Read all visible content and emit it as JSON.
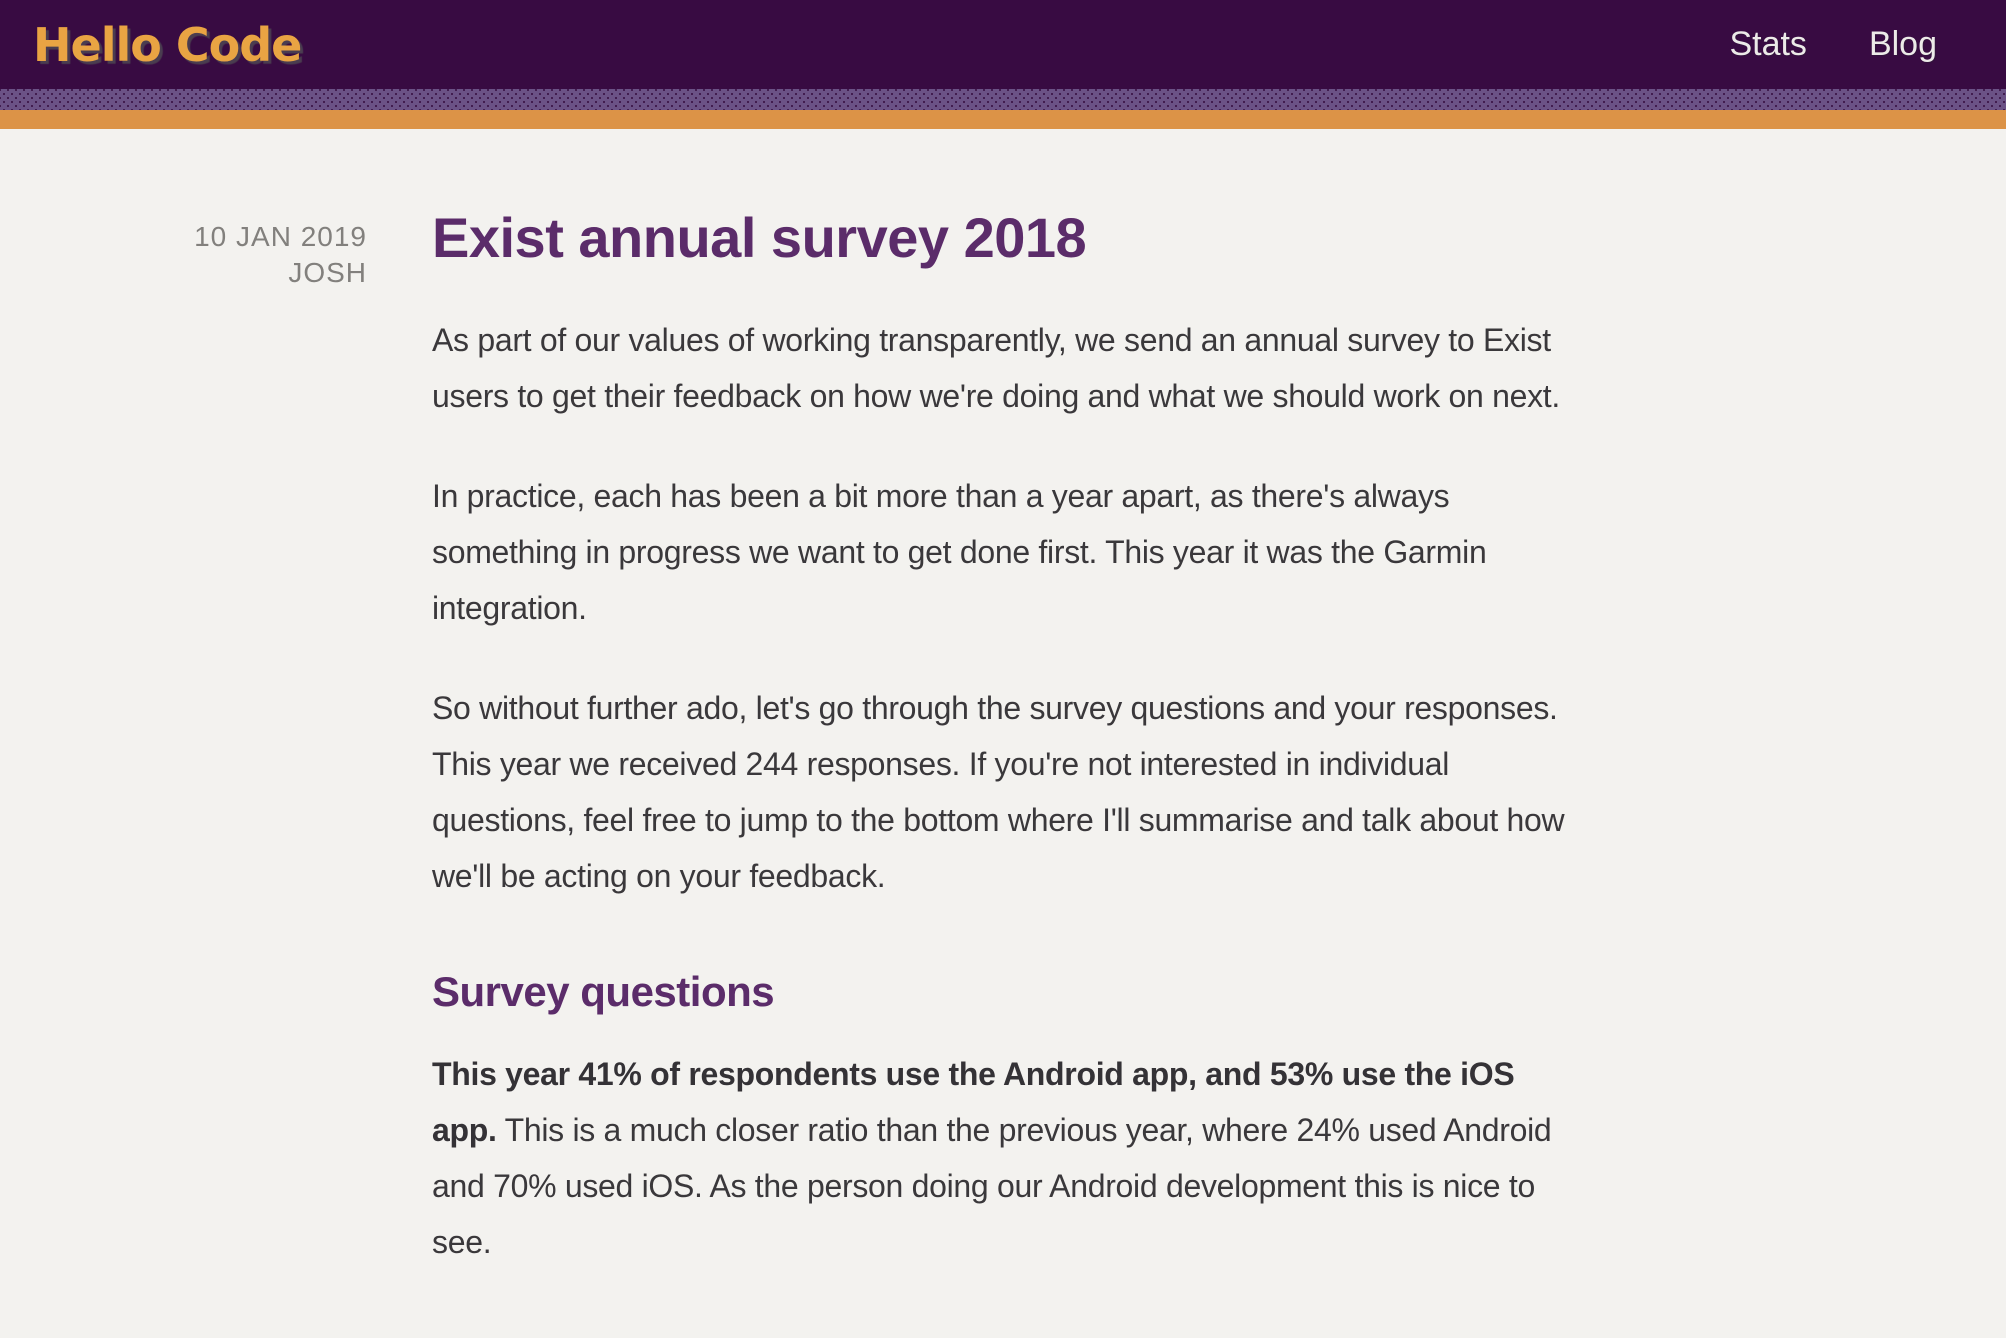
{
  "header": {
    "logo": "Hello Code",
    "nav": [
      {
        "label": "Stats"
      },
      {
        "label": "Blog"
      }
    ]
  },
  "post": {
    "meta": {
      "date": "10 JAN 2019",
      "author": "JOSH"
    },
    "title": "Exist annual survey 2018",
    "paragraphs": [
      "As part of our values of working transparently, we send an annual survey to Exist users to get their feedback on how we're doing and what we should work on next.",
      "In practice, each has been a bit more than a year apart, as there's always something in progress we want to get done first. This year it was the Garmin integration.",
      "So without further ado, let's go through the survey questions and your responses. This year we received 244 responses. If you're not interested in individual questions, feel free to jump to the bottom where I'll summarise and talk about how we'll be acting on your feedback."
    ],
    "section_heading": "Survey questions",
    "final_paragraph": {
      "lead_bold": "This year 41% of respondents use the Android app, and 53% use the iOS app.",
      "rest": " This is a much closer ratio than the previous year, where 24% used Android and 70% used iOS. As the person doing our Android development this is nice to see."
    }
  },
  "colors": {
    "header_background": "#380b42",
    "dots_stripe_base": "#6b5286",
    "dots_stripe_dot": "#3b1548",
    "orange_stripe": "#dc9347",
    "logo_orange": "#e9a443",
    "nav_text": "#eceae8",
    "heading_purple": "#5b2c6a",
    "body_text": "#3a383b",
    "meta_text": "#82807d",
    "page_background": "#f3f2ef"
  }
}
